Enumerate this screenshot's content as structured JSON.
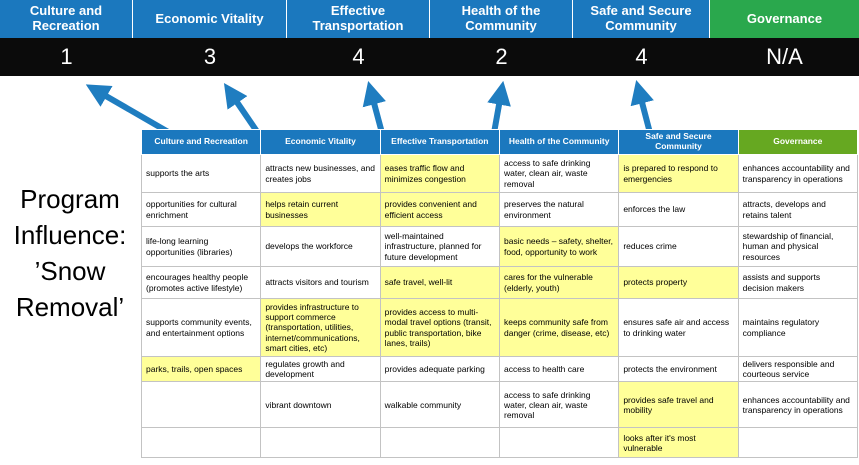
{
  "banner": {
    "categories": [
      {
        "label": "Culture and Recreation",
        "score": "1"
      },
      {
        "label": "Economic Vitality",
        "score": "3"
      },
      {
        "label": "Effective Transportation",
        "score": "4"
      },
      {
        "label": "Health of the Community",
        "score": "2"
      },
      {
        "label": "Safe and Secure Community",
        "score": "4"
      },
      {
        "label": "Governance",
        "score": "N/A"
      }
    ],
    "colors": {
      "category_blue": "#1B78BE",
      "category_green": "#2AA84D",
      "score_band": "#0B0B0B"
    }
  },
  "program": {
    "lines": [
      "Program",
      "Influence:",
      "’Snow",
      "Removal’"
    ]
  },
  "arrows": {
    "color": "#1F7DC0",
    "count": 5
  },
  "table": {
    "headers": [
      "Culture and Recreation",
      "Economic Vitality",
      "Effective Transportation",
      "Health of the Community",
      "Safe and Secure Community",
      "Governance"
    ],
    "header_colors": {
      "blue": "#1B78BE",
      "green": "#66A821"
    },
    "highlight_color": "#FFFF99",
    "rows": [
      [
        {
          "text": "supports the arts",
          "highlight": false
        },
        {
          "text": "attracts new businesses, and creates jobs",
          "highlight": false
        },
        {
          "text": "eases traffic flow and minimizes congestion",
          "highlight": true
        },
        {
          "text": "access to safe drinking water, clean air, waste removal",
          "highlight": false
        },
        {
          "text": "is prepared to respond to emergencies",
          "highlight": true
        },
        {
          "text": "enhances accountability and transparency in operations",
          "highlight": false
        }
      ],
      [
        {
          "text": "opportunities for cultural enrichment",
          "highlight": false
        },
        {
          "text": "helps retain current businesses",
          "highlight": true
        },
        {
          "text": "provides convenient and efficient access",
          "highlight": true
        },
        {
          "text": "preserves the natural environment",
          "highlight": false
        },
        {
          "text": "enforces the law",
          "highlight": false
        },
        {
          "text": "attracts, develops and retains talent",
          "highlight": false
        }
      ],
      [
        {
          "text": "life-long learning opportunities (libraries)",
          "highlight": false
        },
        {
          "text": "develops the workforce",
          "highlight": false
        },
        {
          "text": "well-maintained infrastructure, planned for future development",
          "highlight": false
        },
        {
          "text": "basic needs – safety, shelter, food, opportunity to work",
          "highlight": true
        },
        {
          "text": "reduces crime",
          "highlight": false
        },
        {
          "text": "stewardship of financial, human and physical resources",
          "highlight": false
        }
      ],
      [
        {
          "text": "encourages healthy people (promotes active lifestyle)",
          "highlight": false
        },
        {
          "text": "attracts visitors and tourism",
          "highlight": false
        },
        {
          "text": "safe travel, well-lit",
          "highlight": true
        },
        {
          "text": "cares for the vulnerable (elderly, youth)",
          "highlight": true
        },
        {
          "text": "protects property",
          "highlight": true
        },
        {
          "text": "assists and supports decision makers",
          "highlight": false
        }
      ],
      [
        {
          "text": "supports community events, and entertainment options",
          "highlight": false
        },
        {
          "text": "provides infrastructure to support commerce (transportation, utilities, internet/communications, smart cities, etc)",
          "highlight": true
        },
        {
          "text": "provides access to multi-modal travel options (transit, public transportation, bike lanes, trails)",
          "highlight": true
        },
        {
          "text": "keeps community safe from danger (crime, disease, etc)",
          "highlight": true
        },
        {
          "text": "ensures safe air and access to drinking water",
          "highlight": false
        },
        {
          "text": "maintains regulatory compliance",
          "highlight": false
        }
      ],
      [
        {
          "text": "parks, trails, open spaces",
          "highlight": true
        },
        {
          "text": "regulates growth and development",
          "highlight": false
        },
        {
          "text": "provides adequate parking",
          "highlight": false
        },
        {
          "text": "access to health care",
          "highlight": false
        },
        {
          "text": "protects the environment",
          "highlight": false
        },
        {
          "text": "delivers responsible and courteous service",
          "highlight": false
        }
      ],
      [
        {
          "text": "",
          "highlight": false
        },
        {
          "text": "vibrant downtown",
          "highlight": false
        },
        {
          "text": "walkable community",
          "highlight": false
        },
        {
          "text": "access to safe drinking water, clean air, waste removal",
          "highlight": false
        },
        {
          "text": "provides safe travel and mobility",
          "highlight": true
        },
        {
          "text": "enhances accountability and transparency in operations",
          "highlight": false
        }
      ],
      [
        {
          "text": "",
          "highlight": false
        },
        {
          "text": "",
          "highlight": false
        },
        {
          "text": "",
          "highlight": false
        },
        {
          "text": "",
          "highlight": false
        },
        {
          "text": "looks after it's most vulnerable",
          "highlight": true
        },
        {
          "text": "",
          "highlight": false
        }
      ]
    ]
  }
}
